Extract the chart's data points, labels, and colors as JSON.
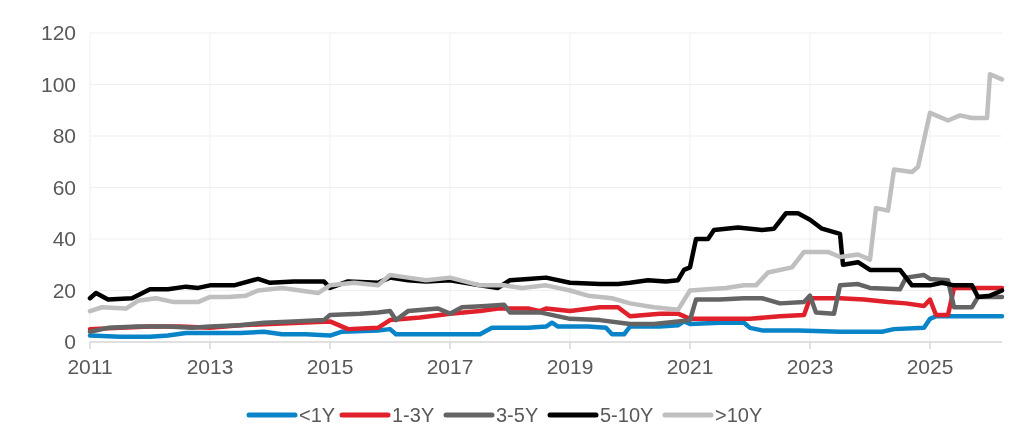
{
  "chart_data": {
    "type": "line",
    "xlim": [
      2011,
      2026.2
    ],
    "xticks": [
      2011,
      2013,
      2015,
      2017,
      2019,
      2021,
      2023,
      2025
    ],
    "ylim": [
      0,
      120
    ],
    "yticks": [
      0,
      20,
      40,
      60,
      80,
      100,
      120
    ],
    "grid": true,
    "legend": "bottom",
    "line_style": "solid",
    "marker": "none",
    "series": [
      {
        "name": "<1Y",
        "color": "#0a84c8",
        "x": [
          2011,
          2011.5,
          2012,
          2012.3,
          2012.6,
          2013,
          2013.5,
          2013.9,
          2014.2,
          2014.6,
          2015,
          2015.2,
          2015.8,
          2016,
          2016.1,
          2016.6,
          2017,
          2017.5,
          2017.7,
          2018.3,
          2018.6,
          2018.7,
          2018.8,
          2019.3,
          2019.6,
          2019.7,
          2019.9,
          2020,
          2020.5,
          2020.8,
          2020.9,
          2021,
          2021.5,
          2021.9,
          2022,
          2022.2,
          2022.8,
          2023.5,
          2024.2,
          2024.4,
          2024.9,
          2025,
          2025.1,
          2026.2
        ],
        "values": [
          2.5,
          2,
          2,
          2.5,
          3.5,
          3.5,
          3.5,
          4,
          3,
          3,
          2.5,
          4,
          4.5,
          5,
          3,
          3,
          3,
          3,
          5.5,
          5.5,
          6,
          7.5,
          6,
          6,
          5.5,
          3,
          3,
          6,
          6,
          6.5,
          8,
          7,
          7.5,
          7.5,
          5.5,
          4.5,
          4.5,
          4,
          4,
          5,
          5.5,
          9,
          10,
          10
        ]
      },
      {
        "name": "1-3Y",
        "color": "#e0202a",
        "x": [
          2011,
          2011.5,
          2012,
          2012.5,
          2013,
          2013.5,
          2014,
          2014.5,
          2015,
          2015.3,
          2015.8,
          2016,
          2016.5,
          2017,
          2017.5,
          2017.8,
          2018.3,
          2018.5,
          2018.6,
          2019,
          2019.5,
          2019.8,
          2020,
          2020.5,
          2020.8,
          2021,
          2021.5,
          2022,
          2022.5,
          2022.9,
          2023,
          2023.5,
          2023.9,
          2024.3,
          2024.6,
          2024.9,
          2025,
          2025.1,
          2025.3,
          2025.4,
          2026.2
        ],
        "values": [
          5,
          5.5,
          6,
          6,
          5.5,
          6.5,
          7,
          7.5,
          8,
          5,
          5.5,
          8.5,
          9.5,
          11,
          12,
          13,
          13,
          12,
          13,
          12,
          13.5,
          13.5,
          10,
          11,
          11,
          9,
          9,
          9,
          10,
          10.5,
          17,
          17,
          16.5,
          15.5,
          15,
          14,
          16.5,
          10.5,
          10.5,
          21,
          21
        ]
      },
      {
        "name": "3-5Y",
        "color": "#646464",
        "x": [
          2011,
          2011.3,
          2011.8,
          2012.3,
          2012.7,
          2013,
          2013.5,
          2013.9,
          2014.4,
          2014.9,
          2015,
          2015.5,
          2015.8,
          2016,
          2016.1,
          2016.3,
          2016.8,
          2017,
          2017.2,
          2017.6,
          2017.9,
          2018,
          2018.5,
          2019,
          2019.5,
          2020,
          2020.4,
          2020.8,
          2021,
          2021.1,
          2021.5,
          2021.9,
          2022.2,
          2022.5,
          2022.9,
          2023,
          2023.1,
          2023.4,
          2023.5,
          2023.8,
          2024,
          2024.5,
          2024.6,
          2024.9,
          2025,
          2025.3,
          2025.4,
          2025.7,
          2025.8,
          2026.2
        ],
        "values": [
          4,
          5.5,
          6,
          6,
          5.5,
          6,
          6.5,
          7.5,
          8,
          8.5,
          10.5,
          11,
          11.5,
          12,
          8.5,
          12,
          13,
          11,
          13.5,
          14,
          14.5,
          11.5,
          11.5,
          9,
          8.5,
          7,
          7,
          8,
          8.5,
          16.5,
          16.5,
          17,
          17,
          15,
          15.5,
          18,
          11.5,
          11,
          22,
          22.5,
          21,
          20.5,
          25,
          26,
          24.5,
          24,
          13.5,
          13.5,
          17.5,
          17.5
        ]
      },
      {
        "name": "5-10Y",
        "color": "#000000",
        "x": [
          2011,
          2011.1,
          2011.3,
          2011.7,
          2012,
          2012.3,
          2012.6,
          2012.8,
          2013,
          2013.4,
          2013.8,
          2014,
          2014.4,
          2014.9,
          2015,
          2015.3,
          2015.8,
          2016,
          2016.3,
          2016.6,
          2017,
          2017.5,
          2017.8,
          2018,
          2018.3,
          2018.6,
          2019,
          2019.5,
          2019.8,
          2020,
          2020.3,
          2020.6,
          2020.8,
          2020.9,
          2021,
          2021.1,
          2021.3,
          2021.4,
          2021.8,
          2022.2,
          2022.4,
          2022.6,
          2022.8,
          2023,
          2023.2,
          2023.5,
          2023.55,
          2023.8,
          2024,
          2024.5,
          2024.7,
          2025,
          2025.2,
          2025.4,
          2025.7,
          2025.8,
          2026,
          2026.2
        ],
        "values": [
          17,
          19,
          16.5,
          17,
          20.5,
          20.5,
          21.5,
          21,
          22,
          22,
          24.5,
          23,
          23.5,
          23.5,
          21,
          23.5,
          23,
          25,
          24,
          23.5,
          24,
          22,
          21,
          24,
          24.5,
          25,
          23,
          22.5,
          22.5,
          23,
          24,
          23.5,
          24,
          28,
          29,
          40,
          40,
          43.5,
          44.5,
          43.5,
          44,
          50,
          50,
          47.5,
          44,
          42,
          30,
          31,
          28,
          28,
          22,
          22,
          23,
          22,
          22,
          17.5,
          18,
          20
        ]
      },
      {
        "name": ">10Y",
        "color": "#bfbfbf",
        "x": [
          2011,
          2011.2,
          2011.6,
          2011.8,
          2012.1,
          2012.4,
          2012.8,
          2013,
          2013.3,
          2013.6,
          2013.8,
          2014.2,
          2014.5,
          2014.8,
          2015,
          2015.4,
          2015.8,
          2016,
          2016.3,
          2016.6,
          2017,
          2017.5,
          2017.9,
          2018.2,
          2018.6,
          2019,
          2019.3,
          2019.7,
          2020,
          2020.4,
          2020.8,
          2021,
          2021.3,
          2021.6,
          2021.9,
          2022.1,
          2022.3,
          2022.7,
          2022.9,
          2023.3,
          2023.5,
          2023.8,
          2024,
          2024.1,
          2024.3,
          2024.4,
          2024.7,
          2024.8,
          2025,
          2025.3,
          2025.5,
          2025.7,
          2025.95,
          2026,
          2026.2
        ],
        "values": [
          12,
          13.5,
          13,
          16,
          17,
          15.5,
          15.5,
          17.5,
          17.5,
          18,
          20,
          21,
          20,
          19,
          22,
          23,
          22,
          26,
          25,
          24,
          25,
          22,
          22,
          21,
          22,
          20,
          18,
          17,
          15,
          13.5,
          12.5,
          20,
          20.5,
          21,
          22,
          22,
          27,
          29,
          35,
          35,
          33,
          34,
          32,
          52,
          51,
          67,
          66,
          68,
          89,
          86,
          88,
          87,
          87,
          104,
          102
        ]
      }
    ]
  }
}
